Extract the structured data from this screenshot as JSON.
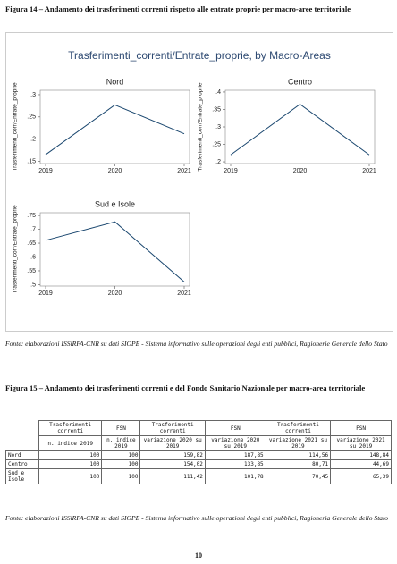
{
  "figure14_caption": "Figura 14 – Andamento dei trasferimenti correnti rispetto alle entrate proprie per macro-aree territoriale",
  "figure_title": "Trasferimenti_correnti/Entrate_proprie, by Macro-Areas",
  "chart_data": [
    {
      "type": "line",
      "title": "Nord",
      "ylabel": "Trasferimenti_corr/Entrate_proprie",
      "color": "#1a476f",
      "x": [
        2019,
        2020,
        2021
      ],
      "values": [
        0.165,
        0.277,
        0.212
      ],
      "xlim": [
        2019,
        2021
      ],
      "xticks": [
        2019,
        2020,
        2021
      ],
      "ylim": [
        0.145,
        0.31
      ],
      "yticks": [
        {
          "value": 0.15,
          "label": ".15"
        },
        {
          "value": 0.2,
          "label": ".2"
        },
        {
          "value": 0.25,
          "label": ".25"
        },
        {
          "value": 0.3,
          "label": ".3"
        }
      ]
    },
    {
      "type": "line",
      "title": "Centro",
      "ylabel": "Trasferimenti_corr/Entrate_proprie",
      "color": "#1a476f",
      "x": [
        2019,
        2020,
        2021
      ],
      "values": [
        0.22,
        0.365,
        0.22
      ],
      "xlim": [
        2019,
        2021
      ],
      "xticks": [
        2019,
        2020,
        2021
      ],
      "ylim": [
        0.195,
        0.405
      ],
      "yticks": [
        {
          "value": 0.2,
          "label": ".2"
        },
        {
          "value": 0.25,
          "label": ".25"
        },
        {
          "value": 0.3,
          "label": ".3"
        },
        {
          "value": 0.35,
          "label": ".35"
        },
        {
          "value": 0.4,
          "label": ".4"
        }
      ]
    },
    {
      "type": "line",
      "title": "Sud e Isole",
      "ylabel": "Trasferimenti_corr/Entrate_proprie",
      "color": "#1a476f",
      "x": [
        2019,
        2020,
        2021
      ],
      "values": [
        0.66,
        0.727,
        0.51
      ],
      "xlim": [
        2019,
        2021
      ],
      "xticks": [
        2019,
        2020,
        2021
      ],
      "ylim": [
        0.495,
        0.76
      ],
      "yticks": [
        {
          "value": 0.5,
          "label": ".5"
        },
        {
          "value": 0.55,
          "label": ".55"
        },
        {
          "value": 0.6,
          "label": ".6"
        },
        {
          "value": 0.65,
          "label": ".65"
        },
        {
          "value": 0.7,
          "label": ".7"
        },
        {
          "value": 0.75,
          "label": ".75"
        }
      ]
    }
  ],
  "source14": "Fonte: elaborazioni ISSiRFA-CNR su dati SIOPE - Sistema informativo sulle operazioni degli enti pubblici, Ragionerie Generale dello Stato",
  "figure15_caption": "Figura 15 – Andamento dei trasferimenti correnti e del Fondo Sanitario Nazionale per macro-area territoriale",
  "table": {
    "header1": [
      "Trasferimenti correnti",
      "FSN",
      "Trasferimenti correnti",
      "FSN",
      "Trasferimenti correnti",
      "FSN"
    ],
    "header2": [
      "n. indice 2019",
      "n. indice 2019",
      "variazione 2020 su 2019",
      "variazione 2020 su 2019",
      "variazione 2021 su 2019",
      "variazione 2021 su 2019"
    ],
    "rows": [
      [
        "Nord",
        "100",
        "100",
        "159,82",
        "187,85",
        "114,56",
        "148,84"
      ],
      [
        "Centro",
        "100",
        "100",
        "154,02",
        "133,85",
        "80,71",
        "44,69"
      ],
      [
        "Sud e Isole",
        "100",
        "100",
        "111,42",
        "101,78",
        "70,45",
        "65,39"
      ]
    ]
  },
  "source15": "Fonte: elaborazioni ISSiRFA-CNR su dati SIOPE - Sistema informativo sulle operazioni degli enti pubblici, Ragioneria Generale dello Stato",
  "page_number": "10"
}
